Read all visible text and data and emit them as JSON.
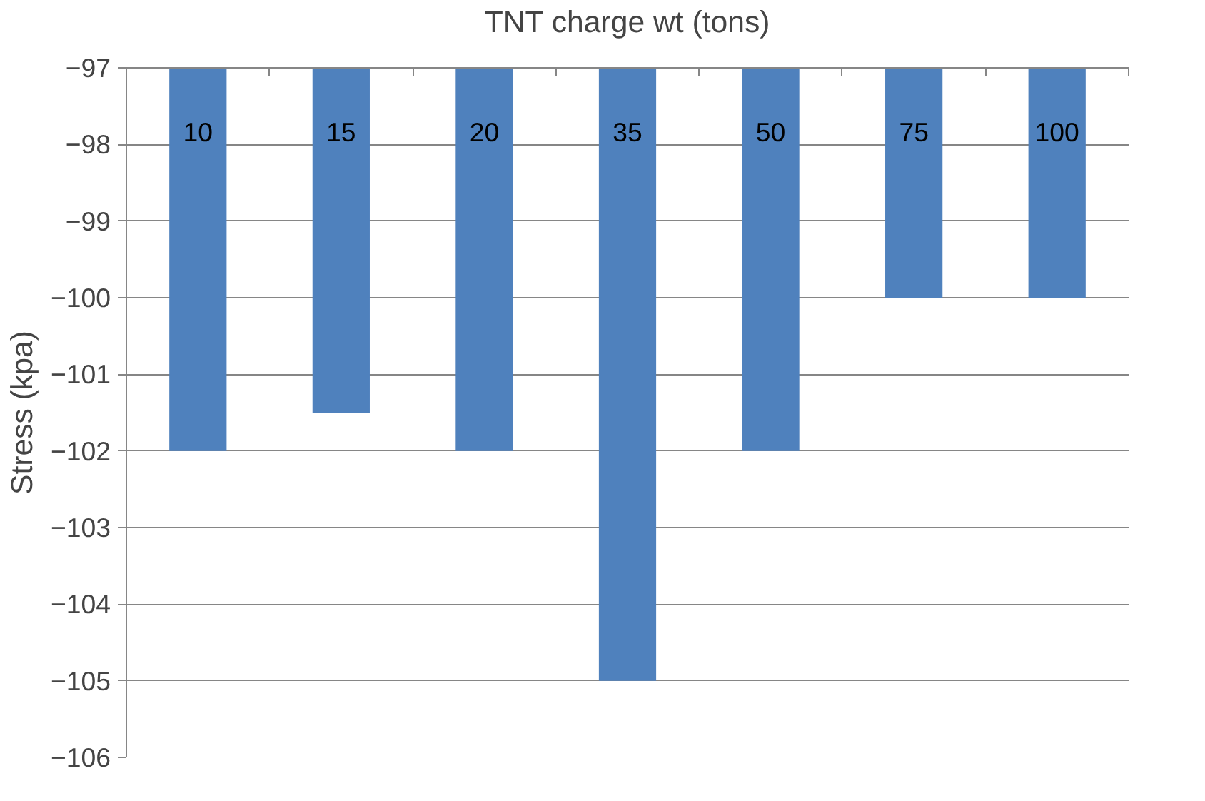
{
  "chart_data": {
    "type": "bar",
    "xlabel": "TNT charge wt (tons)",
    "ylabel": "Stress (kpa)",
    "categories": [
      "10",
      "15",
      "20",
      "35",
      "50",
      "75",
      "100"
    ],
    "values": [
      -102,
      -101.5,
      -102,
      -105,
      -102,
      -100,
      -100
    ],
    "color": "#4f81bd",
    "ylim": [
      -106,
      -97
    ],
    "yticks": [
      -106,
      -105,
      -104,
      -103,
      -102,
      -101,
      -100,
      -99,
      -98,
      -97
    ],
    "grid": "y"
  }
}
